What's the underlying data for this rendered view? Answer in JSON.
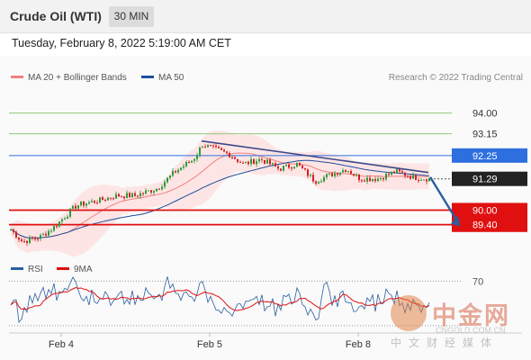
{
  "header": {
    "title": "Crude Oil (WTI)",
    "timeframe": "30 MIN"
  },
  "datetime": "Tuesday, February 8, 2022 5:19:00 AM CET",
  "legend": {
    "ma20_label": "MA 20 + Bollinger Bands",
    "ma50_label": "MA 50",
    "rsi_label": "RSI",
    "rsi_ma_label": "9MA"
  },
  "copyright": "Research © 2022 Trading Central",
  "colors": {
    "ma20": "#f08080",
    "bollinger_fill": "#ffe0e0",
    "ma50": "#1f4e9c",
    "resistance_green": "#90c978",
    "pivot_blue": "#2e6fe0",
    "support_red": "#e01010",
    "current_price": "#222222",
    "candle_up": "#2a9a3a",
    "candle_down": "#d02020",
    "trendline": "#3a4a8a",
    "arrow": "#2a5ea0",
    "rsi": "#2a5ea0",
    "rsi_ma": "#e01010"
  },
  "watermark": {
    "title": "中金网",
    "url": "CNGOLD.COM.CN",
    "subtitle": "中文财经媒体"
  },
  "chart_data": [
    {
      "type": "candlestick",
      "ylim": [
        88.2,
        95.1
      ],
      "x_labels": [
        "Feb 4",
        "Feb 5",
        "Feb 8"
      ],
      "levels": [
        {
          "value": 94.0,
          "label": "94.00",
          "kind": "resistance"
        },
        {
          "value": 93.15,
          "label": "93.15",
          "kind": "resistance"
        },
        {
          "value": 92.25,
          "label": "92.25",
          "kind": "pivot"
        },
        {
          "value": 91.29,
          "label": "91.29",
          "kind": "current"
        },
        {
          "value": 90.0,
          "label": "90.00",
          "kind": "support"
        },
        {
          "value": 89.4,
          "label": "89.40",
          "kind": "support"
        }
      ],
      "series": [
        {
          "name": "MA 20 + Bollinger Bands"
        },
        {
          "name": "MA 50"
        }
      ],
      "annotation": {
        "target_from": 91.29,
        "target_to": 89.4
      }
    },
    {
      "type": "line",
      "ylim": [
        25,
        80
      ],
      "level": {
        "value": 70,
        "label": "70"
      },
      "series": [
        {
          "name": "RSI"
        },
        {
          "name": "9MA"
        }
      ]
    }
  ]
}
